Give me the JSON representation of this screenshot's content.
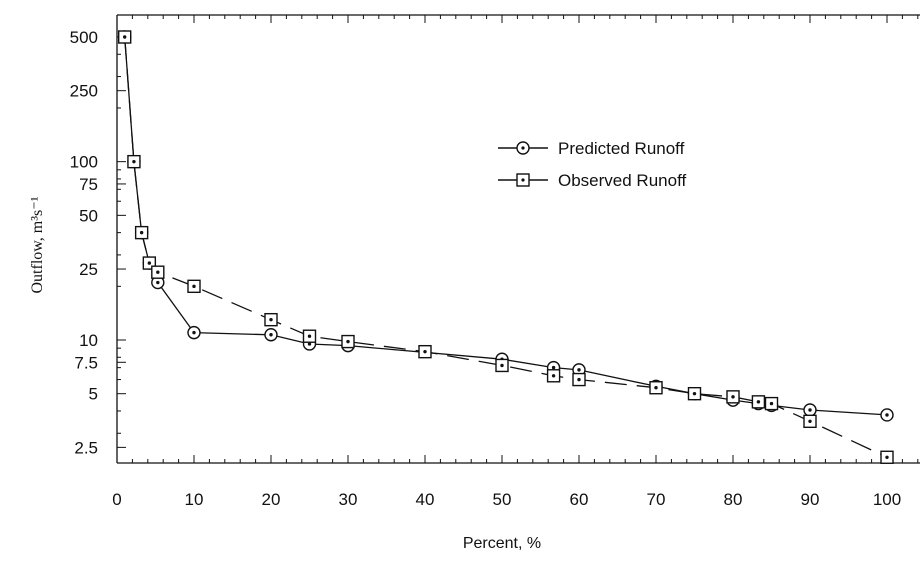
{
  "chart_data": {
    "type": "line",
    "title": "",
    "xlabel": "Percent, %",
    "ylabel": "Outflow, m³s⁻¹",
    "x_ticks": [
      "0",
      "10",
      "20",
      "30",
      "40",
      "50",
      "60",
      "70",
      "80",
      "90",
      "100"
    ],
    "y_ticks": [
      {
        "value": 500,
        "label": "500"
      },
      {
        "value": 250,
        "label": "250"
      },
      {
        "value": 100,
        "label": "100"
      },
      {
        "value": 75,
        "label": "75"
      },
      {
        "value": 50,
        "label": "50"
      },
      {
        "value": 25,
        "label": "25"
      },
      {
        "value": 10,
        "label": "10"
      },
      {
        "value": 7.5,
        "label": "7.5"
      },
      {
        "value": 5,
        "label": "5"
      },
      {
        "value": 2.5,
        "label": "2.5"
      }
    ],
    "xlim": [
      0,
      104
    ],
    "ylim": [
      1.6,
      700
    ],
    "y_scale": "log",
    "grid": false,
    "legend_position": "upper-center-right",
    "series": [
      {
        "name": "Predicted Runoff",
        "marker": "circle",
        "line": "solid",
        "x": [
          1,
          2.2,
          3.2,
          4.2,
          5.3,
          10,
          20,
          25,
          30,
          50,
          56.7,
          60,
          70,
          75,
          80,
          83.3,
          85,
          90,
          100
        ],
        "y": [
          500,
          100,
          40,
          27,
          21,
          11,
          10.7,
          9.5,
          9.3,
          7.8,
          7.0,
          6.8,
          5.5,
          5.0,
          4.6,
          4.4,
          4.3,
          4.05,
          3.8
        ]
      },
      {
        "name": "Observed Runoff",
        "marker": "square",
        "line": "dashed",
        "x": [
          1,
          2.2,
          3.2,
          4.2,
          5.3,
          10,
          20,
          25,
          30,
          40,
          50,
          56.7,
          60,
          70,
          75,
          80,
          83.3,
          85,
          90,
          100
        ],
        "y": [
          500,
          100,
          40,
          27,
          24,
          20,
          13,
          10.5,
          9.8,
          8.6,
          7.2,
          6.3,
          6.0,
          5.4,
          5.0,
          4.8,
          4.5,
          4.4,
          3.5,
          2.2
        ]
      }
    ]
  }
}
